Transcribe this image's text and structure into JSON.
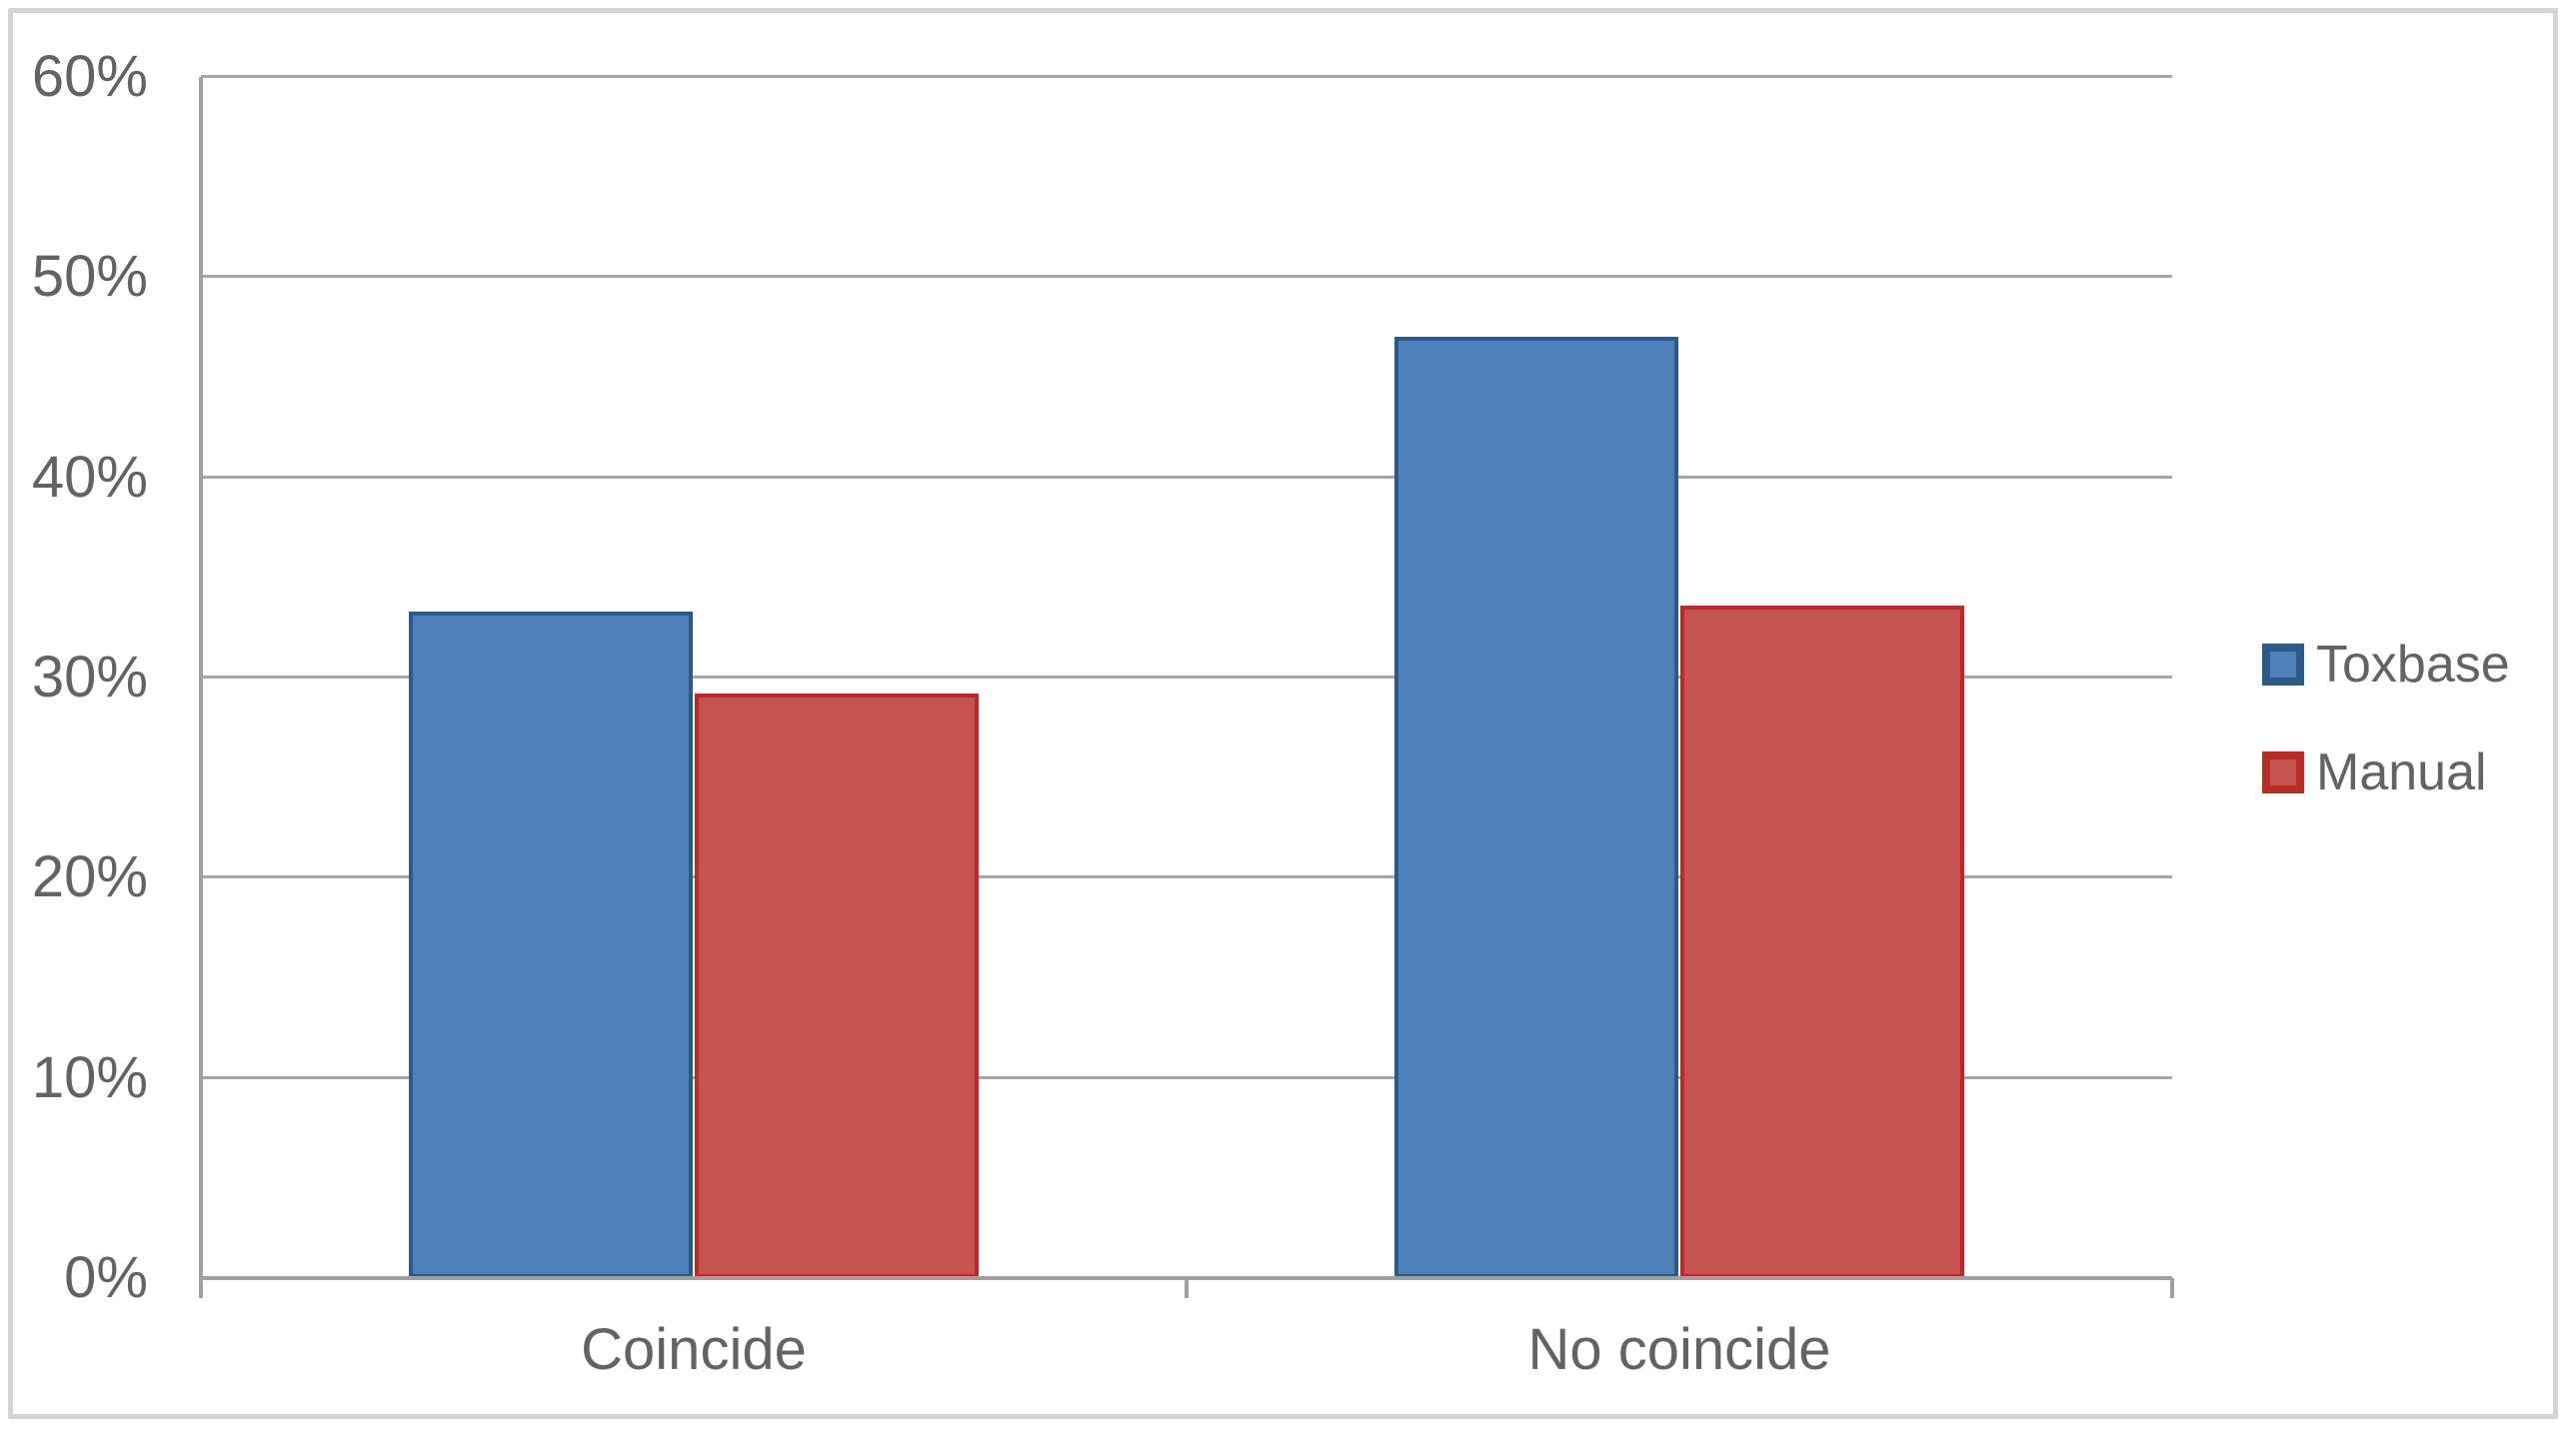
{
  "chart_data": {
    "type": "bar",
    "title": "",
    "xlabel": "",
    "ylabel": "",
    "categories": [
      "Coincide",
      "No coincide"
    ],
    "series": [
      {
        "name": "Toxbase",
        "values": [
          33.3,
          47.0
        ],
        "fill": "#4e80bc",
        "border": "#2c5985"
      },
      {
        "name": "Manual",
        "values": [
          29.2,
          33.6
        ],
        "fill": "#c5534f",
        "border": "#b82c27"
      }
    ],
    "ylim": [
      0,
      60
    ],
    "ytick_values": [
      0,
      10,
      20,
      30,
      40,
      50,
      60
    ],
    "ytick_labels": [
      "0%",
      "10%",
      "20%",
      "30%",
      "40%",
      "50%",
      "60%"
    ],
    "grid": true,
    "legend_position": "right",
    "colors": {
      "text": "#636363",
      "gridline": "#a6a6a6",
      "axis": "#a0a0a0",
      "frame_border": "#d4d4d4"
    }
  }
}
